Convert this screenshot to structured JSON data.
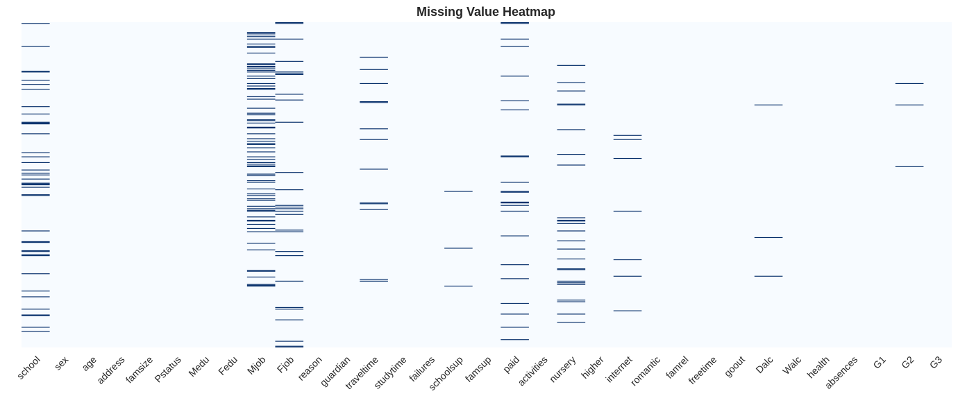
{
  "chart_data": {
    "type": "heatmap",
    "title": "Missing Value Heatmap",
    "columns": [
      "school",
      "sex",
      "age",
      "address",
      "famsize",
      "Pstatus",
      "Medu",
      "Fedu",
      "Mjob",
      "Fjob",
      "reason",
      "guardian",
      "traveltime",
      "studytime",
      "failures",
      "schoolsup",
      "famsup",
      "paid",
      "activities",
      "nursery",
      "higher",
      "internet",
      "romantic",
      "famrel",
      "freetime",
      "goout",
      "Dalc",
      "Walc",
      "health",
      "absences",
      "G1",
      "G2",
      "G3"
    ],
    "n_rows": 395,
    "colors": {
      "present": "#f7fbff",
      "missing": "#08306b"
    },
    "missing_rows": {
      "school": [
        1,
        29,
        59,
        60,
        70,
        75,
        81,
        102,
        111,
        121,
        122,
        123,
        135,
        158,
        163,
        170,
        179,
        183,
        185,
        190,
        195,
        196,
        197,
        200,
        209,
        210,
        253,
        266,
        267,
        277,
        278,
        282,
        283,
        305,
        326,
        333,
        348,
        355,
        356,
        370,
        375
      ],
      "Mjob": [
        12,
        13,
        15,
        17,
        20,
        26,
        29,
        30,
        37,
        50,
        51,
        53,
        54,
        56,
        58,
        60,
        65,
        68,
        74,
        77,
        80,
        81,
        90,
        93,
        104,
        110,
        112,
        118,
        119,
        122,
        127,
        128,
        135,
        141,
        144,
        147,
        148,
        152,
        157,
        163,
        166,
        170,
        172,
        174,
        175,
        184,
        186,
        192,
        194,
        202,
        208,
        210,
        214,
        216,
        223,
        226,
        228,
        229,
        236,
        240,
        241,
        245,
        250,
        254,
        268,
        276,
        301,
        302,
        309,
        318,
        319,
        320
      ],
      "Fjob": [
        0,
        1,
        20,
        47,
        60,
        62,
        63,
        87,
        94,
        121,
        182,
        203,
        222,
        224,
        226,
        229,
        233,
        252,
        254,
        278,
        283,
        314,
        346,
        348,
        361,
        387,
        393,
        394
      ],
      "traveltime": [
        42,
        57,
        74,
        96,
        97,
        129,
        142,
        178,
        219,
        220,
        227,
        312,
        314
      ],
      "schoolsup": [
        205,
        274,
        320
      ],
      "paid": [
        0,
        1,
        20,
        29,
        65,
        95,
        106,
        162,
        163,
        194,
        205,
        206,
        218,
        219,
        222,
        229,
        259,
        294,
        311,
        341,
        354,
        370,
        385
      ],
      "nursery": [
        52,
        73,
        83,
        99,
        100,
        130,
        160,
        173,
        237,
        240,
        241,
        244,
        253,
        265,
        275,
        287,
        299,
        300,
        314,
        316,
        318,
        337,
        339,
        354,
        364
      ],
      "internet": [
        137,
        142,
        165,
        229,
        288,
        308,
        350
      ],
      "Dalc": [
        100,
        261,
        308
      ],
      "G2": [
        74,
        100,
        175
      ]
    }
  }
}
